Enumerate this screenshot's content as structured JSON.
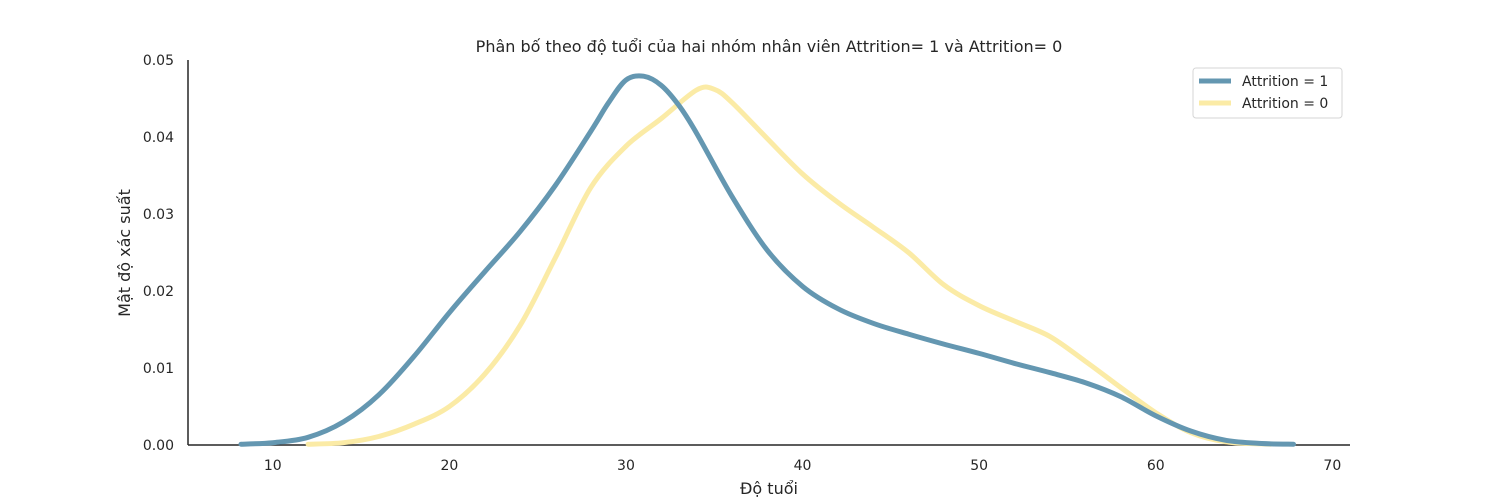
{
  "chart_data": {
    "type": "line",
    "title": "Phân bố theo độ tuổi của hai nhóm nhân viên Attrition= 1 và Attrition= 0",
    "xlabel": "Độ tuổi",
    "ylabel": "Mật độ xác suất",
    "xlim": [
      5.2,
      71.0
    ],
    "ylim": [
      0,
      0.05
    ],
    "xticks": [
      10,
      20,
      30,
      40,
      50,
      60,
      70
    ],
    "yticks": [
      0.0,
      0.01,
      0.02,
      0.03,
      0.04,
      0.05
    ],
    "ytick_labels": [
      "0.00",
      "0.01",
      "0.02",
      "0.03",
      "0.04",
      "0.05"
    ],
    "grid": false,
    "legend_position": "top-right",
    "series": [
      {
        "name": "Attrition = 1",
        "color": "#6497b1",
        "points": [
          [
            8.2,
            0.0001
          ],
          [
            10,
            0.0003
          ],
          [
            12,
            0.001
          ],
          [
            14,
            0.003
          ],
          [
            16,
            0.0065
          ],
          [
            18,
            0.0115
          ],
          [
            20,
            0.0172
          ],
          [
            22,
            0.0225
          ],
          [
            24,
            0.0277
          ],
          [
            26,
            0.0337
          ],
          [
            28,
            0.0407
          ],
          [
            29,
            0.0444
          ],
          [
            30,
            0.0474
          ],
          [
            31,
            0.0479
          ],
          [
            32,
            0.0467
          ],
          [
            33,
            0.0441
          ],
          [
            34,
            0.0405
          ],
          [
            36,
            0.0323
          ],
          [
            38,
            0.0253
          ],
          [
            40,
            0.0206
          ],
          [
            42,
            0.0177
          ],
          [
            44,
            0.0158
          ],
          [
            46,
            0.0144
          ],
          [
            48,
            0.0131
          ],
          [
            50,
            0.0119
          ],
          [
            52,
            0.0106
          ],
          [
            54,
            0.0094
          ],
          [
            56,
            0.0081
          ],
          [
            58,
            0.0063
          ],
          [
            60,
            0.0038
          ],
          [
            62,
            0.0018
          ],
          [
            64,
            0.0006
          ],
          [
            66,
            0.0002
          ],
          [
            67.8,
            0.0001
          ]
        ]
      },
      {
        "name": "Attrition = 0",
        "color": "#fbeba6",
        "points": [
          [
            12,
            0.0001
          ],
          [
            14,
            0.0003
          ],
          [
            16,
            0.0011
          ],
          [
            18,
            0.0027
          ],
          [
            20,
            0.005
          ],
          [
            22,
            0.0092
          ],
          [
            24,
            0.0155
          ],
          [
            26,
            0.0243
          ],
          [
            28,
            0.0334
          ],
          [
            30,
            0.0388
          ],
          [
            32,
            0.0424
          ],
          [
            34,
            0.0461
          ],
          [
            35,
            0.0462
          ],
          [
            36,
            0.0445
          ],
          [
            38,
            0.0398
          ],
          [
            40,
            0.0352
          ],
          [
            42,
            0.0315
          ],
          [
            44,
            0.0283
          ],
          [
            46,
            0.025
          ],
          [
            48,
            0.0208
          ],
          [
            50,
            0.0181
          ],
          [
            52,
            0.0161
          ],
          [
            54,
            0.0141
          ],
          [
            56,
            0.0109
          ],
          [
            58,
            0.0075
          ],
          [
            60,
            0.0042
          ],
          [
            62,
            0.0016
          ],
          [
            64,
            0.0004
          ],
          [
            66.5,
            0.0001
          ]
        ]
      }
    ]
  }
}
